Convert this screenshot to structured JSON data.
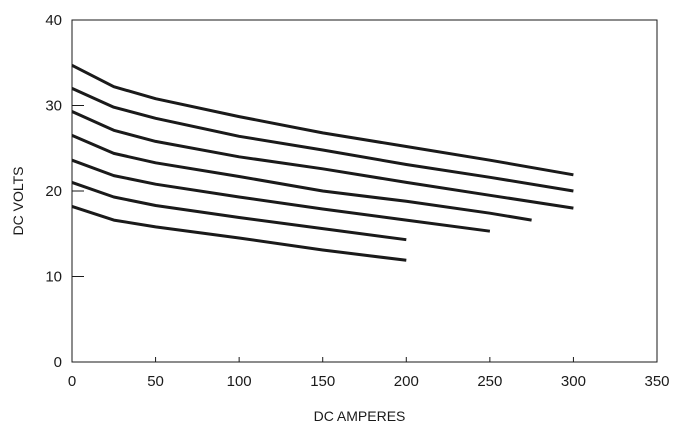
{
  "chart_data": {
    "type": "line",
    "title": "",
    "xlabel": "DC AMPERES",
    "ylabel": "DC VOLTS",
    "xlim": [
      0,
      350
    ],
    "ylim": [
      0,
      40
    ],
    "x_ticks": [
      "0",
      "50",
      "100",
      "150",
      "200",
      "250",
      "300",
      "350"
    ],
    "y_ticks": [
      "0",
      "10",
      "20",
      "30",
      "40"
    ],
    "grid": false,
    "legend": "none",
    "line_color": "#1a1a1a",
    "series": [
      {
        "x": [
          0,
          25,
          50,
          100,
          150,
          200,
          250,
          300
        ],
        "y": [
          34.7,
          32.2,
          30.8,
          28.7,
          26.8,
          25.2,
          23.6,
          21.9
        ]
      },
      {
        "x": [
          0,
          25,
          50,
          100,
          150,
          200,
          250,
          300
        ],
        "y": [
          32.0,
          29.8,
          28.5,
          26.4,
          24.8,
          23.1,
          21.6,
          20.0
        ]
      },
      {
        "x": [
          0,
          25,
          50,
          100,
          150,
          200,
          250,
          300
        ],
        "y": [
          29.3,
          27.1,
          25.8,
          24.0,
          22.6,
          21.0,
          19.5,
          18.0
        ]
      },
      {
        "x": [
          0,
          25,
          50,
          100,
          150,
          200,
          250,
          275
        ],
        "y": [
          26.5,
          24.4,
          23.3,
          21.7,
          20.0,
          18.8,
          17.4,
          16.6
        ]
      },
      {
        "x": [
          0,
          25,
          50,
          100,
          150,
          200,
          250
        ],
        "y": [
          23.6,
          21.8,
          20.8,
          19.3,
          17.9,
          16.6,
          15.3
        ]
      },
      {
        "x": [
          0,
          25,
          50,
          100,
          150,
          200
        ],
        "y": [
          21.0,
          19.3,
          18.3,
          16.9,
          15.6,
          14.3
        ]
      },
      {
        "x": [
          0,
          25,
          50,
          100,
          150,
          200
        ],
        "y": [
          18.2,
          16.6,
          15.8,
          14.5,
          13.1,
          11.9
        ]
      }
    ]
  }
}
